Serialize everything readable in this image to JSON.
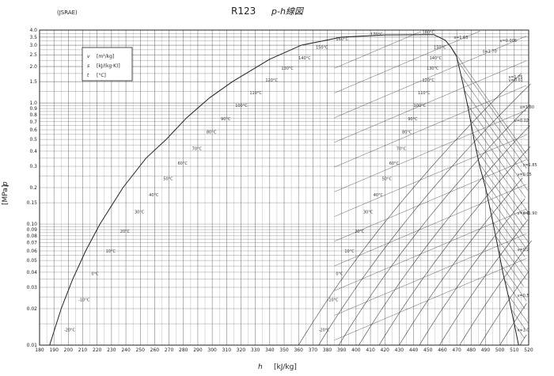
{
  "header": {
    "source": "(JSRAE)",
    "title": "R123",
    "subtitle": "p-h線図"
  },
  "legend": {
    "items": [
      {
        "symbol": "v",
        "unit": "[m³/kg]"
      },
      {
        "symbol": "s",
        "unit": "[kJ/(kg·K)]"
      },
      {
        "symbol": "t",
        "unit": "[°C]"
      }
    ]
  },
  "colors": {
    "line": "#333333",
    "grid": "#555555",
    "background": "#ffffff"
  },
  "chart_data": {
    "type": "line",
    "title": "R123",
    "subtitle": "p-h線図",
    "xlabel": "h",
    "xunit": "[kJ/kg]",
    "ylabel": "p",
    "yunit": "[MPa]",
    "xlim": [
      180,
      520
    ],
    "ylim": [
      0.01,
      4.0
    ],
    "yscale": "log",
    "grid": true,
    "legend_position": "top-left",
    "x_ticks": [
      180,
      190,
      200,
      210,
      220,
      230,
      240,
      250,
      260,
      270,
      280,
      290,
      300,
      310,
      320,
      330,
      340,
      350,
      360,
      370,
      380,
      390,
      400,
      410,
      420,
      430,
      440,
      450,
      460,
      470,
      480,
      490,
      500,
      510,
      520
    ],
    "y_ticks": [
      {
        "value": 4.0,
        "label": "4.0"
      },
      {
        "value": 3.5,
        "label": "3.5"
      },
      {
        "value": 3.0,
        "label": "3.0"
      },
      {
        "value": 2.5,
        "label": "2.5"
      },
      {
        "value": 2.0,
        "label": "2.0"
      },
      {
        "value": 1.5,
        "label": "1.5"
      },
      {
        "value": 1.0,
        "label": "1.0"
      },
      {
        "value": 0.9,
        "label": "0.9"
      },
      {
        "value": 0.8,
        "label": "0.8"
      },
      {
        "value": 0.7,
        "label": "0.7"
      },
      {
        "value": 0.6,
        "label": "0.6"
      },
      {
        "value": 0.5,
        "label": "0.5"
      },
      {
        "value": 0.4,
        "label": "0.4"
      },
      {
        "value": 0.3,
        "label": "0.3"
      },
      {
        "value": 0.2,
        "label": "0.2"
      },
      {
        "value": 0.15,
        "label": "0.15"
      },
      {
        "value": 0.1,
        "label": "0.10"
      },
      {
        "value": 0.09,
        "label": "0.09"
      },
      {
        "value": 0.08,
        "label": "0.08"
      },
      {
        "value": 0.07,
        "label": "0.07"
      },
      {
        "value": 0.06,
        "label": "0.06"
      },
      {
        "value": 0.05,
        "label": "0.05"
      },
      {
        "value": 0.04,
        "label": "0.04"
      },
      {
        "value": 0.03,
        "label": "0.03"
      },
      {
        "value": 0.02,
        "label": "0.02"
      },
      {
        "value": 0.01,
        "label": "0.01"
      }
    ],
    "saturation_curve": {
      "liquid": [
        [
          187,
          0.01
        ],
        [
          195,
          0.02
        ],
        [
          203,
          0.035
        ],
        [
          212,
          0.06
        ],
        [
          222,
          0.1
        ],
        [
          238,
          0.2
        ],
        [
          254,
          0.35
        ],
        [
          268,
          0.5
        ],
        [
          282,
          0.75
        ],
        [
          298,
          1.1
        ],
        [
          314,
          1.5
        ],
        [
          340,
          2.3
        ],
        [
          362,
          3.0
        ],
        [
          390,
          3.5
        ],
        [
          420,
          3.65
        ],
        [
          454,
          3.67
        ]
      ],
      "vapor": [
        [
          454,
          3.67
        ],
        [
          462,
          3.3
        ],
        [
          466,
          2.9
        ],
        [
          470,
          2.4
        ],
        [
          474,
          1.5
        ],
        [
          478,
          0.9
        ],
        [
          482,
          0.5
        ],
        [
          486,
          0.3
        ],
        [
          490,
          0.2
        ],
        [
          494,
          0.12
        ],
        [
          498,
          0.07
        ],
        [
          502,
          0.04
        ],
        [
          506,
          0.025
        ],
        [
          510,
          0.015
        ],
        [
          513,
          0.01
        ]
      ]
    },
    "isotherm_labels": [
      {
        "label": "-20°C",
        "h": 197,
        "p": 0.013
      },
      {
        "label": "-10°C",
        "h": 207,
        "p": 0.023
      },
      {
        "label": "0°C",
        "h": 216,
        "p": 0.038
      },
      {
        "label": "10°C",
        "h": 226,
        "p": 0.058
      },
      {
        "label": "20°C",
        "h": 236,
        "p": 0.085
      },
      {
        "label": "30°C",
        "h": 246,
        "p": 0.123
      },
      {
        "label": "40°C",
        "h": 256,
        "p": 0.17
      },
      {
        "label": "50°C",
        "h": 266,
        "p": 0.23
      },
      {
        "label": "60°C",
        "h": 276,
        "p": 0.31
      },
      {
        "label": "70°C",
        "h": 286,
        "p": 0.41
      },
      {
        "label": "80°C",
        "h": 296,
        "p": 0.56
      },
      {
        "label": "90°C",
        "h": 306,
        "p": 0.72
      },
      {
        "label": "100°C",
        "h": 316,
        "p": 0.93
      },
      {
        "label": "110°C",
        "h": 326,
        "p": 1.18
      },
      {
        "label": "120°C",
        "h": 337,
        "p": 1.5
      },
      {
        "label": "130°C",
        "h": 348,
        "p": 1.88
      },
      {
        "label": "140°C",
        "h": 360,
        "p": 2.3
      },
      {
        "label": "150°C",
        "h": 372,
        "p": 2.8
      },
      {
        "label": "160°C",
        "h": 386,
        "p": 3.3
      },
      {
        "label": "170°C",
        "h": 410,
        "p": 3.6
      },
      {
        "label": "180°C",
        "h": 446,
        "p": 3.75
      },
      {
        "label": "-20°C",
        "h": 374,
        "p": 0.013
      },
      {
        "label": "-10°C",
        "h": 380,
        "p": 0.023
      },
      {
        "label": "0°C",
        "h": 386,
        "p": 0.038
      },
      {
        "label": "10°C",
        "h": 392,
        "p": 0.058
      },
      {
        "label": "20°C",
        "h": 399,
        "p": 0.085
      },
      {
        "label": "30°C",
        "h": 405,
        "p": 0.123
      },
      {
        "label": "40°C",
        "h": 412,
        "p": 0.17
      },
      {
        "label": "50°C",
        "h": 418,
        "p": 0.23
      },
      {
        "label": "60°C",
        "h": 423,
        "p": 0.31
      },
      {
        "label": "70°C",
        "h": 428,
        "p": 0.41
      },
      {
        "label": "80°C",
        "h": 432,
        "p": 0.56
      },
      {
        "label": "90°C",
        "h": 436,
        "p": 0.72
      },
      {
        "label": "100°C",
        "h": 440,
        "p": 0.93
      },
      {
        "label": "110°C",
        "h": 443,
        "p": 1.18
      },
      {
        "label": "120°C",
        "h": 446,
        "p": 1.5
      },
      {
        "label": "130°C",
        "h": 449,
        "p": 1.88
      },
      {
        "label": "140°C",
        "h": 451,
        "p": 2.3
      },
      {
        "label": "150°C",
        "h": 454,
        "p": 2.8
      }
    ],
    "isentrope_labels": [
      {
        "label": "s=1.65",
        "h": 468,
        "p": 3.4
      },
      {
        "label": "s=1.70",
        "h": 488,
        "p": 2.6
      },
      {
        "label": "s=1.75",
        "h": 506,
        "p": 1.6
      },
      {
        "label": "s=1.80",
        "h": 514,
        "p": 0.9
      },
      {
        "label": "s=1.85",
        "h": 516,
        "p": 0.3
      },
      {
        "label": "s=1.90",
        "h": 516,
        "p": 0.12
      }
    ],
    "isochore_labels": [
      {
        "label": "v=0.005",
        "h": 500,
        "p": 3.2
      },
      {
        "label": "v=0.01",
        "h": 506,
        "p": 1.5
      },
      {
        "label": "v=0.02",
        "h": 510,
        "p": 0.7
      },
      {
        "label": "v=0.05",
        "h": 512,
        "p": 0.25
      },
      {
        "label": "v=0.1",
        "h": 512,
        "p": 0.12
      },
      {
        "label": "v=0.2",
        "h": 512,
        "p": 0.06
      },
      {
        "label": "v=0.5",
        "h": 512,
        "p": 0.025
      },
      {
        "label": "v=1.0",
        "h": 512,
        "p": 0.013
      }
    ]
  }
}
